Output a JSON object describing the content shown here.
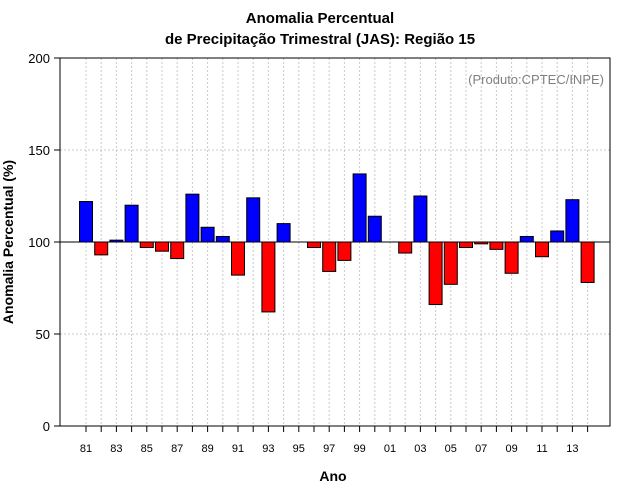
{
  "chart_data": {
    "type": "bar",
    "title": "Anomalia Percentual",
    "subtitle": "de Precipitação Trimestral (JAS): Região 15",
    "xlabel": "Ano",
    "ylabel": "Anomalia Percentual (%)",
    "credit": "(Produto:CPTEC/INPE)",
    "baseline": 100,
    "ylim": [
      0,
      200
    ],
    "yticks": [
      0,
      50,
      100,
      150,
      200
    ],
    "grid": true,
    "categories": [
      "81",
      "82",
      "83",
      "84",
      "85",
      "86",
      "87",
      "88",
      "89",
      "90",
      "91",
      "92",
      "93",
      "94",
      "95",
      "96",
      "97",
      "98",
      "99",
      "00",
      "01",
      "02",
      "03",
      "04",
      "05",
      "06",
      "07",
      "08",
      "09",
      "10",
      "11",
      "12",
      "13",
      "14"
    ],
    "xtick_labels": [
      "81",
      "83",
      "85",
      "87",
      "89",
      "91",
      "93",
      "95",
      "97",
      "99",
      "01",
      "03",
      "05",
      "07",
      "09",
      "11",
      "13"
    ],
    "values": [
      122,
      93,
      101,
      120,
      97,
      95,
      91,
      126,
      108,
      103,
      82,
      124,
      62,
      110,
      100,
      97,
      84,
      90,
      137,
      114,
      100,
      94,
      125,
      66,
      77,
      97,
      99,
      96,
      83,
      103,
      92,
      106,
      123,
      78
    ],
    "colors": {
      "above": "#0000ff",
      "below": "#ff0000"
    }
  }
}
